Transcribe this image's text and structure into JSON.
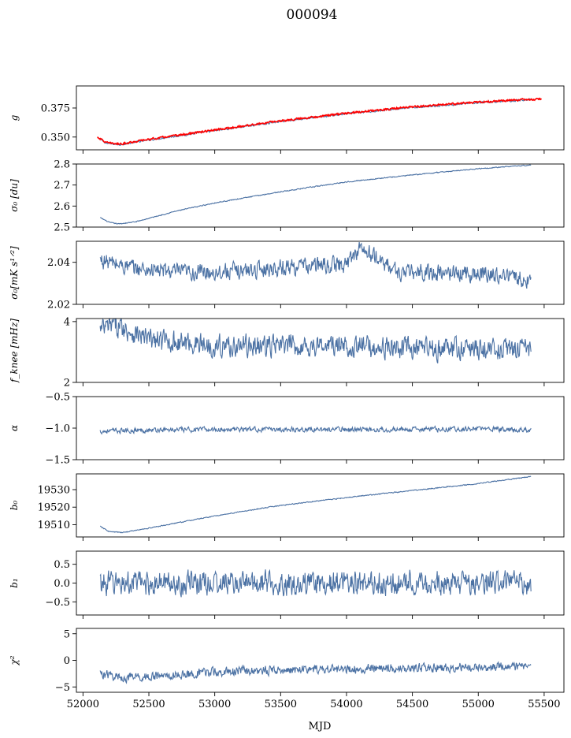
{
  "suptitle": "000094",
  "colors": {
    "series": "#4c72a4",
    "highlight": "#ff0000",
    "axes": "#000000"
  },
  "chart_data": {
    "type": "line",
    "shared_x": {
      "label": "MJD",
      "xlim": [
        51950,
        55650
      ],
      "ticks": [
        52000,
        52500,
        53000,
        53500,
        54000,
        54500,
        55000,
        55500
      ],
      "tick_labels": [
        "52000",
        "52500",
        "53000",
        "53500",
        "54000",
        "54500",
        "55000",
        "55500"
      ]
    },
    "panels": [
      {
        "id": "g",
        "ylabel": "g",
        "ylim": [
          0.339,
          0.394
        ],
        "yticks": [
          0.35,
          0.375
        ],
        "ytick_labels": [
          "0.350",
          "0.375"
        ],
        "noise": 0.0007,
        "series": [
          {
            "color": "#4c72a4",
            "x": [
              52130,
              52180,
              52280,
              52500,
              53000,
              53500,
              54000,
              54500,
              55000,
              55300,
              55400
            ],
            "y": [
              0.348,
              0.3445,
              0.3435,
              0.3475,
              0.3555,
              0.3635,
              0.37,
              0.3755,
              0.3795,
              0.3815,
              0.3825
            ]
          },
          {
            "color": "#ff0000",
            "x": [
              52110,
              52180,
              52280,
              52500,
              53000,
              53500,
              54000,
              54500,
              55000,
              55300,
              55480
            ],
            "y": [
              0.35,
              0.345,
              0.344,
              0.348,
              0.356,
              0.364,
              0.3705,
              0.376,
              0.38,
              0.382,
              0.3825
            ]
          }
        ]
      },
      {
        "id": "sigma0_du",
        "ylabel": "σ₀ [du]",
        "ylim": [
          2.5,
          2.8
        ],
        "yticks": [
          2.5,
          2.6,
          2.7,
          2.8
        ],
        "ytick_labels": [
          "2.5",
          "2.6",
          "2.7",
          "2.8"
        ],
        "noise": 0.002,
        "series": [
          {
            "color": "#4c72a4",
            "x": [
              52130,
              52200,
              52270,
              52400,
              52700,
              53000,
              53500,
              54000,
              54500,
              55000,
              55400
            ],
            "y": [
              2.545,
              2.522,
              2.515,
              2.525,
              2.575,
              2.615,
              2.668,
              2.715,
              2.748,
              2.778,
              2.795
            ]
          }
        ]
      },
      {
        "id": "sigma0_mk",
        "ylabel": "σ₀[mK s¹ᐟ²]",
        "ylim": [
          2.02,
          2.05
        ],
        "yticks": [
          2.02,
          2.04
        ],
        "ytick_labels": [
          "2.02",
          "2.04"
        ],
        "noise": 0.0035,
        "series": [
          {
            "color": "#4c72a4",
            "x": [
              52130,
              52400,
              52800,
              53200,
              53600,
              54000,
              54100,
              54400,
              54800,
              55200,
              55400
            ],
            "y": [
              2.041,
              2.037,
              2.035,
              2.036,
              2.038,
              2.039,
              2.047,
              2.035,
              2.035,
              2.034,
              2.031
            ]
          }
        ]
      },
      {
        "id": "fknee",
        "ylabel": "f_knee [mHz]",
        "ylim": [
          2.0,
          4.1
        ],
        "yticks": [
          2,
          4
        ],
        "ytick_labels": [
          "2",
          "4"
        ],
        "noise": 0.32,
        "series": [
          {
            "color": "#4c72a4",
            "x": [
              52130,
              52250,
              52500,
              52800,
              53000,
              53500,
              54000,
              54500,
              55000,
              55400
            ],
            "y": [
              3.7,
              3.9,
              3.4,
              3.3,
              3.2,
              3.2,
              3.2,
              3.1,
              3.1,
              3.1
            ]
          }
        ]
      },
      {
        "id": "alpha",
        "ylabel": "α",
        "ylim": [
          -1.5,
          -0.5
        ],
        "yticks": [
          -1.5,
          -1.0,
          -0.5
        ],
        "ytick_labels": [
          "−1.5",
          "−1.0",
          "−0.5"
        ],
        "noise": 0.035,
        "series": [
          {
            "color": "#4c72a4",
            "x": [
              52130,
              52500,
              53000,
              53500,
              54000,
              54500,
              55000,
              55400
            ],
            "y": [
              -1.05,
              -1.03,
              -1.02,
              -1.02,
              -1.02,
              -1.02,
              -1.01,
              -1.03
            ]
          }
        ]
      },
      {
        "id": "b0",
        "ylabel": "b₀",
        "ylim": [
          19503,
          19539
        ],
        "yticks": [
          19510,
          19520,
          19530
        ],
        "ytick_labels": [
          "19510",
          "19520",
          "19530"
        ],
        "noise": 0.25,
        "series": [
          {
            "color": "#4c72a4",
            "x": [
              52130,
              52200,
              52300,
              52500,
              53000,
              53500,
              54000,
              54500,
              55000,
              55400
            ],
            "y": [
              19509,
              19506,
              19505.5,
              19508,
              19515,
              19521,
              19525.5,
              19529.5,
              19533.5,
              19537.5
            ]
          }
        ]
      },
      {
        "id": "b1",
        "ylabel": "b₁",
        "ylim": [
          -0.85,
          0.85
        ],
        "yticks": [
          -0.5,
          0.0,
          0.5
        ],
        "ytick_labels": [
          "−0.5",
          "0.0",
          "0.5"
        ],
        "noise": 0.28,
        "series": [
          {
            "color": "#4c72a4",
            "x": [
              52130,
              53000,
              54000,
              55000,
              55400
            ],
            "y": [
              0.0,
              0.0,
              0.0,
              0.0,
              0.0
            ]
          }
        ]
      },
      {
        "id": "chi2",
        "ylabel": "χ²",
        "ylim": [
          -6,
          6
        ],
        "yticks": [
          -5,
          0,
          5
        ],
        "ytick_labels": [
          "−5",
          "0",
          "5"
        ],
        "noise": 0.75,
        "series": [
          {
            "color": "#4c72a4",
            "x": [
              52130,
              52300,
              52700,
              53000,
              53500,
              54000,
              54500,
              55000,
              55400
            ],
            "y": [
              -2.5,
              -3.3,
              -2.8,
              -2.2,
              -1.8,
              -1.6,
              -1.4,
              -1.3,
              -1.2
            ]
          }
        ]
      }
    ]
  }
}
